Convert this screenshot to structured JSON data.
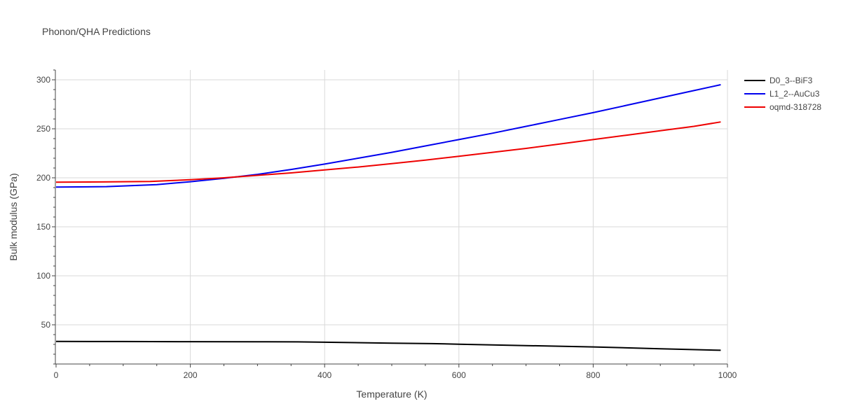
{
  "chart_data": {
    "type": "line",
    "title": "Phonon/QHA Predictions",
    "xlabel": "Temperature (K)",
    "ylabel": "Bulk modulus (GPa)",
    "xlim": [
      0,
      1000
    ],
    "ylim": [
      10,
      310
    ],
    "xticks": [
      0,
      200,
      400,
      600,
      800,
      1000
    ],
    "yticks": [
      50,
      100,
      150,
      200,
      250,
      300
    ],
    "grid": true,
    "legend_position": "top-right",
    "series": [
      {
        "name": "D0_3--BiF3",
        "color": "#000000",
        "x": [
          0,
          100,
          200,
          300,
          360,
          400,
          500,
          560,
          600,
          700,
          800,
          900,
          990
        ],
        "y": [
          33.0,
          32.9,
          32.8,
          32.7,
          32.6,
          32.2,
          31.3,
          30.8,
          30.2,
          28.8,
          27.4,
          25.6,
          24.0
        ]
      },
      {
        "name": "L1_2--AuCu3",
        "color": "#0000ee",
        "x": [
          0,
          75,
          150,
          200,
          250,
          300,
          350,
          400,
          450,
          500,
          550,
          600,
          650,
          700,
          750,
          800,
          850,
          900,
          950,
          990
        ],
        "y": [
          190.5,
          191.0,
          193.0,
          196.0,
          199.5,
          203.5,
          208.5,
          214.0,
          220.0,
          226.0,
          232.5,
          239.0,
          245.5,
          252.5,
          259.5,
          266.5,
          274.0,
          281.5,
          289.0,
          295.0
        ]
      },
      {
        "name": "oqmd-318728",
        "color": "#ee0000",
        "x": [
          0,
          70,
          140,
          200,
          250,
          300,
          350,
          400,
          450,
          500,
          550,
          600,
          650,
          700,
          750,
          800,
          850,
          900,
          950,
          990
        ],
        "y": [
          195.5,
          195.8,
          196.3,
          198.0,
          200.0,
          202.5,
          205.0,
          208.0,
          211.0,
          214.5,
          218.0,
          222.0,
          226.0,
          230.0,
          234.5,
          239.0,
          243.5,
          248.0,
          252.5,
          257.0
        ]
      }
    ]
  }
}
